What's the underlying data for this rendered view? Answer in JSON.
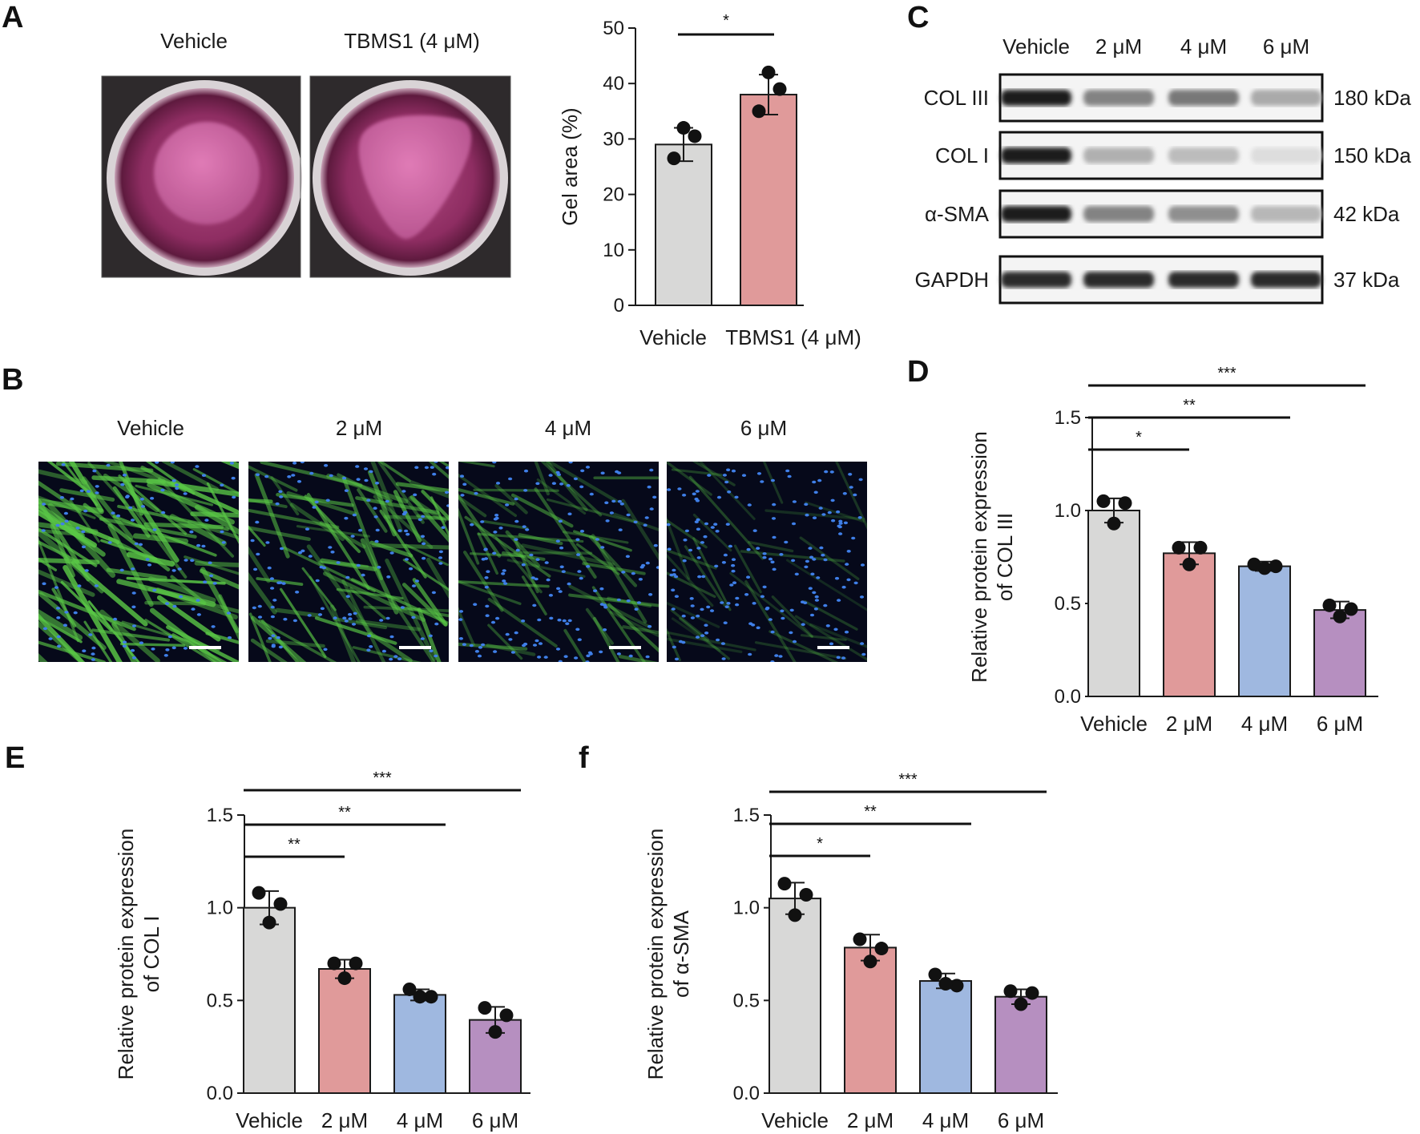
{
  "panels": {
    "A": {
      "label": "A",
      "photo_labels": [
        "Vehicle",
        "TBMS1 (4 μM)"
      ],
      "chart": {
        "type": "bar",
        "categories": [
          "Vehicle",
          "TBMS1 (4 μM)"
        ],
        "values": [
          29,
          38
        ],
        "error": [
          3,
          3.6
        ],
        "points": [
          [
            32,
            30.5,
            26.5
          ],
          [
            42,
            39,
            35
          ]
        ],
        "colors": [
          "#d8d8d7",
          "#e09a9a"
        ],
        "ylabel": "Gel area (%)",
        "ylim": [
          0,
          50
        ],
        "yticks": [
          "0",
          "10",
          "20",
          "30",
          "40",
          "50"
        ],
        "significance": [
          {
            "from": 0,
            "to": 1,
            "label": "*"
          }
        ]
      }
    },
    "B": {
      "label": "B",
      "photo_labels": [
        "Vehicle",
        "2 μM",
        "4 μM",
        "6 μM"
      ],
      "green_intensity": [
        1.0,
        0.7,
        0.4,
        0.12
      ]
    },
    "C": {
      "label": "C",
      "lanes": [
        "Vehicle",
        "2 μM",
        "4 μM",
        "6 μM"
      ],
      "rows": [
        {
          "protein": "COL III",
          "size": "180 kDa",
          "intensity": [
            1.0,
            0.55,
            0.6,
            0.38
          ]
        },
        {
          "protein": "COL I",
          "size": "150 kDa",
          "intensity": [
            1.0,
            0.35,
            0.3,
            0.15
          ]
        },
        {
          "protein": "α-SMA",
          "size": "42 kDa",
          "intensity": [
            1.0,
            0.55,
            0.5,
            0.32
          ]
        },
        {
          "protein": "GAPDH",
          "size": "37 kDa",
          "intensity": [
            0.95,
            0.95,
            0.95,
            0.95
          ]
        }
      ]
    },
    "D": {
      "label": "D",
      "chart": {
        "type": "bar",
        "categories": [
          "Vehicle",
          "2 μM",
          "4 μM",
          "6 μM"
        ],
        "values": [
          1.0,
          0.77,
          0.7,
          0.465
        ],
        "error": [
          0.065,
          0.06,
          0.025,
          0.045
        ],
        "points": [
          [
            1.05,
            1.04,
            0.93
          ],
          [
            0.8,
            0.8,
            0.71
          ],
          [
            0.71,
            0.7,
            0.69
          ],
          [
            0.49,
            0.47,
            0.43
          ]
        ],
        "colors": [
          "#d8d8d7",
          "#e09a9a",
          "#9fb8e0",
          "#b68fc0"
        ],
        "ylabel": [
          "Relative protein expression",
          "of COL III"
        ],
        "ylim": [
          0,
          1.5
        ],
        "yticks": [
          "0.0",
          "0.5",
          "1.0",
          "1.5"
        ],
        "significance": [
          {
            "from": 0,
            "to": 3,
            "label": "***"
          },
          {
            "from": 0,
            "to": 2,
            "label": "**"
          },
          {
            "from": 0,
            "to": 1,
            "label": "*"
          }
        ]
      }
    },
    "E": {
      "label": "E",
      "chart": {
        "type": "bar",
        "categories": [
          "Vehicle",
          "2 μM",
          "4 μM",
          "6 μM"
        ],
        "values": [
          1.0,
          0.67,
          0.53,
          0.395
        ],
        "error": [
          0.09,
          0.05,
          0.03,
          0.07
        ],
        "points": [
          [
            1.08,
            1.02,
            0.92
          ],
          [
            0.7,
            0.7,
            0.62
          ],
          [
            0.56,
            0.52,
            0.52
          ],
          [
            0.46,
            0.42,
            0.33
          ]
        ],
        "colors": [
          "#d8d8d7",
          "#e09a9a",
          "#9fb8e0",
          "#b68fc0"
        ],
        "ylabel": [
          "Relative protein expression",
          "of COL I"
        ],
        "ylim": [
          0,
          1.5
        ],
        "yticks": [
          "0.0",
          "0.5",
          "1.0",
          "1.5"
        ],
        "significance": [
          {
            "from": 0,
            "to": 3,
            "label": "***"
          },
          {
            "from": 0,
            "to": 2,
            "label": "**"
          },
          {
            "from": 0,
            "to": 1,
            "label": "**"
          }
        ]
      }
    },
    "F": {
      "label": "f",
      "chart": {
        "type": "bar",
        "categories": [
          "Vehicle",
          "2 μM",
          "4 μM",
          "6 μM"
        ],
        "values": [
          1.05,
          0.785,
          0.605,
          0.52
        ],
        "error": [
          0.085,
          0.07,
          0.04,
          0.04
        ],
        "points": [
          [
            1.13,
            1.07,
            0.96
          ],
          [
            0.83,
            0.78,
            0.71
          ],
          [
            0.64,
            0.58,
            0.59
          ],
          [
            0.55,
            0.54,
            0.48
          ]
        ],
        "colors": [
          "#d8d8d7",
          "#e09a9a",
          "#9fb8e0",
          "#b68fc0"
        ],
        "ylabel": [
          "Relative protein expression",
          "of α-SMA"
        ],
        "ylim": [
          0,
          1.5
        ],
        "yticks": [
          "0.0",
          "0.5",
          "1.0",
          "1.5"
        ],
        "significance": [
          {
            "from": 0,
            "to": 3,
            "label": "***"
          },
          {
            "from": 0,
            "to": 2,
            "label": "**"
          },
          {
            "from": 0,
            "to": 1,
            "label": "*"
          }
        ]
      }
    }
  }
}
